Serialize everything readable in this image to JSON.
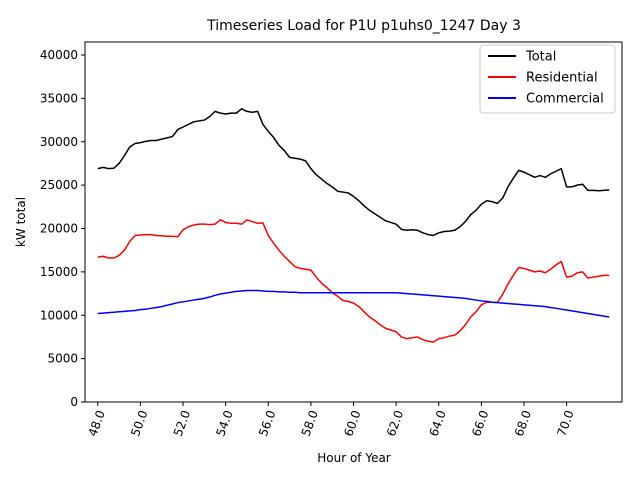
{
  "chart_data": {
    "type": "line",
    "title": "Timeseries Load for P1U p1uhs0_1247  Day 3",
    "xlabel": "Hour of Year",
    "ylabel": "kW total",
    "xlim": [
      47.4,
      72.6
    ],
    "ylim": [
      0,
      41500
    ],
    "x_ticks": [
      48,
      50,
      52,
      54,
      56,
      58,
      60,
      62,
      64,
      66,
      68,
      70
    ],
    "x_tick_labels": [
      "48.0",
      "50.0",
      "52.0",
      "54.0",
      "56.0",
      "58.0",
      "60.0",
      "62.0",
      "64.0",
      "66.0",
      "68.0",
      "70.0"
    ],
    "y_ticks": [
      0,
      5000,
      10000,
      15000,
      20000,
      25000,
      30000,
      35000,
      40000
    ],
    "y_tick_labels": [
      "0",
      "5000",
      "10000",
      "15000",
      "20000",
      "25000",
      "30000",
      "35000",
      "40000"
    ],
    "legend_position": "top-right",
    "x": [
      48.0,
      48.25,
      48.5,
      48.75,
      49.0,
      49.25,
      49.5,
      49.75,
      50.0,
      50.25,
      50.5,
      50.75,
      51.0,
      51.25,
      51.5,
      51.75,
      52.0,
      52.25,
      52.5,
      52.75,
      53.0,
      53.25,
      53.5,
      53.75,
      54.0,
      54.25,
      54.5,
      54.75,
      55.0,
      55.25,
      55.5,
      55.75,
      56.0,
      56.25,
      56.5,
      56.75,
      57.0,
      57.25,
      57.5,
      57.75,
      58.0,
      58.25,
      58.5,
      58.75,
      59.0,
      59.25,
      59.5,
      59.75,
      60.0,
      60.25,
      60.5,
      60.75,
      61.0,
      61.25,
      61.5,
      61.75,
      62.0,
      62.25,
      62.5,
      62.75,
      63.0,
      63.25,
      63.5,
      63.75,
      64.0,
      64.25,
      64.5,
      64.75,
      65.0,
      65.25,
      65.5,
      65.75,
      66.0,
      66.25,
      66.5,
      66.75,
      67.0,
      67.25,
      67.5,
      67.75,
      68.0,
      68.25,
      68.5,
      68.75,
      69.0,
      69.25,
      69.5,
      69.75,
      70.0,
      70.25,
      70.5,
      70.75,
      71.0,
      71.25,
      71.5,
      71.75,
      72.0
    ],
    "series": [
      {
        "name": "Total",
        "color": "#000000",
        "values": [
          26900,
          27050,
          26900,
          26950,
          27500,
          28400,
          29400,
          29800,
          29900,
          30050,
          30150,
          30150,
          30300,
          30450,
          30600,
          31400,
          31700,
          32000,
          32300,
          32400,
          32500,
          32900,
          33500,
          33300,
          33200,
          33300,
          33300,
          33800,
          33500,
          33400,
          33500,
          32000,
          31200,
          30500,
          29600,
          29000,
          28200,
          28100,
          28000,
          27800,
          26900,
          26200,
          25700,
          25200,
          24800,
          24300,
          24200,
          24100,
          23700,
          23200,
          22600,
          22100,
          21700,
          21300,
          20900,
          20700,
          20500,
          19900,
          19800,
          19850,
          19800,
          19500,
          19300,
          19200,
          19500,
          19650,
          19700,
          19800,
          20200,
          20800,
          21600,
          22100,
          22800,
          23200,
          23100,
          22900,
          23500,
          24800,
          25800,
          26700,
          26500,
          26200,
          25900,
          26100,
          25900,
          26300,
          26600,
          26900,
          24800,
          24800,
          25000,
          25100,
          24400,
          24400,
          24350,
          24400,
          24450
        ]
      },
      {
        "name": "Residential",
        "color": "#ff0000",
        "values": [
          16700,
          16800,
          16600,
          16600,
          16900,
          17500,
          18500,
          19200,
          19250,
          19300,
          19300,
          19200,
          19150,
          19100,
          19100,
          19050,
          19850,
          20200,
          20400,
          20500,
          20500,
          20450,
          20500,
          21000,
          20700,
          20600,
          20600,
          20500,
          21000,
          20800,
          20600,
          20650,
          19200,
          18300,
          17500,
          16800,
          16200,
          15600,
          15400,
          15300,
          15200,
          14400,
          13700,
          13200,
          12600,
          12200,
          11700,
          11600,
          11400,
          11000,
          10400,
          9800,
          9400,
          8900,
          8500,
          8300,
          8100,
          7500,
          7300,
          7400,
          7500,
          7200,
          7000,
          6900,
          7300,
          7400,
          7600,
          7700,
          8200,
          8900,
          9800,
          10400,
          11200,
          11500,
          11500,
          11500,
          12400,
          13600,
          14600,
          15500,
          15400,
          15200,
          15000,
          15100,
          14900,
          15300,
          15800,
          16200,
          14400,
          14500,
          14900,
          15000,
          14300,
          14400,
          14500,
          14600,
          14600
        ]
      },
      {
        "name": "Commercial",
        "color": "#0000ff",
        "values": [
          10200,
          10250,
          10300,
          10350,
          10400,
          10450,
          10500,
          10550,
          10650,
          10700,
          10800,
          10900,
          11000,
          11150,
          11300,
          11450,
          11550,
          11650,
          11750,
          11850,
          11950,
          12100,
          12300,
          12450,
          12550,
          12650,
          12750,
          12800,
          12850,
          12850,
          12850,
          12800,
          12750,
          12750,
          12700,
          12700,
          12650,
          12650,
          12600,
          12600,
          12600,
          12600,
          12600,
          12600,
          12600,
          12600,
          12600,
          12600,
          12600,
          12600,
          12600,
          12600,
          12600,
          12600,
          12600,
          12600,
          12600,
          12550,
          12500,
          12450,
          12400,
          12350,
          12300,
          12250,
          12200,
          12150,
          12100,
          12050,
          12000,
          11950,
          11850,
          11750,
          11650,
          11600,
          11500,
          11450,
          11400,
          11350,
          11300,
          11250,
          11200,
          11150,
          11100,
          11050,
          11000,
          10900,
          10800,
          10700,
          10600,
          10500,
          10400,
          10300,
          10200,
          10100,
          10000,
          9900,
          9800
        ]
      }
    ]
  }
}
